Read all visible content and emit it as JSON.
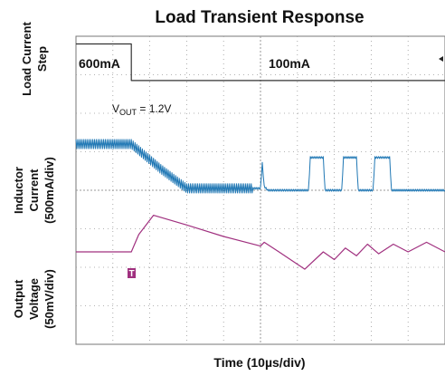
{
  "chart_data": {
    "type": "line",
    "title": "Load Transient Response",
    "xlabel": "Time (10µs/div)",
    "x_divisions": 10,
    "y_divisions": 8,
    "grid": true,
    "series": [
      {
        "name": "Load Current Step",
        "ylabel_lines": [
          "Load Current",
          "Step"
        ],
        "color": "#333333",
        "x": [
          0,
          1.5,
          1.5,
          10
        ],
        "y": [
          7.8,
          7.8,
          6.85,
          6.85
        ]
      },
      {
        "name": "Inductor Current (500mA/div)",
        "ylabel_lines": [
          "Inductor",
          "Current",
          "(500mA/div)"
        ],
        "color": "#1f77b4",
        "x": [
          0,
          1.5,
          2.3,
          3.0,
          4.0,
          5.0,
          5.05,
          5.1,
          5.2,
          6.3,
          6.35,
          6.7,
          6.75,
          7.2,
          7.25,
          7.6,
          7.65,
          8.05,
          8.1,
          8.5,
          8.55,
          9.0,
          9.05,
          10
        ],
        "y": [
          5.2,
          5.2,
          4.55,
          4.05,
          4.05,
          4.05,
          4.7,
          4.1,
          4.0,
          4.0,
          4.85,
          4.85,
          4.0,
          4.0,
          4.85,
          4.85,
          4.0,
          4.0,
          4.85,
          4.85,
          4.0,
          4.0,
          4.0,
          4.0
        ]
      },
      {
        "name": "Output Voltage (50mV/div)",
        "ylabel_lines": [
          "Output",
          "Voltage",
          "(50mV/div)"
        ],
        "color": "#a0307f",
        "x": [
          0,
          1.5,
          1.7,
          2.1,
          3.0,
          4.0,
          5.0,
          5.1,
          5.5,
          6.2,
          6.7,
          7.0,
          7.3,
          7.6,
          7.9,
          8.2,
          8.6,
          9.0,
          9.5,
          10
        ],
        "y": [
          2.4,
          2.4,
          2.85,
          3.35,
          3.1,
          2.8,
          2.55,
          2.65,
          2.4,
          1.95,
          2.4,
          2.2,
          2.5,
          2.3,
          2.6,
          2.35,
          2.6,
          2.4,
          2.65,
          2.4
        ]
      }
    ],
    "annotations": {
      "step_low_label": "600mA",
      "step_high_label": "100mA",
      "vout_label_main": "V",
      "vout_label_sub": "OUT",
      "vout_label_rest": " = 1.2V",
      "trigger_marker": "T"
    }
  }
}
